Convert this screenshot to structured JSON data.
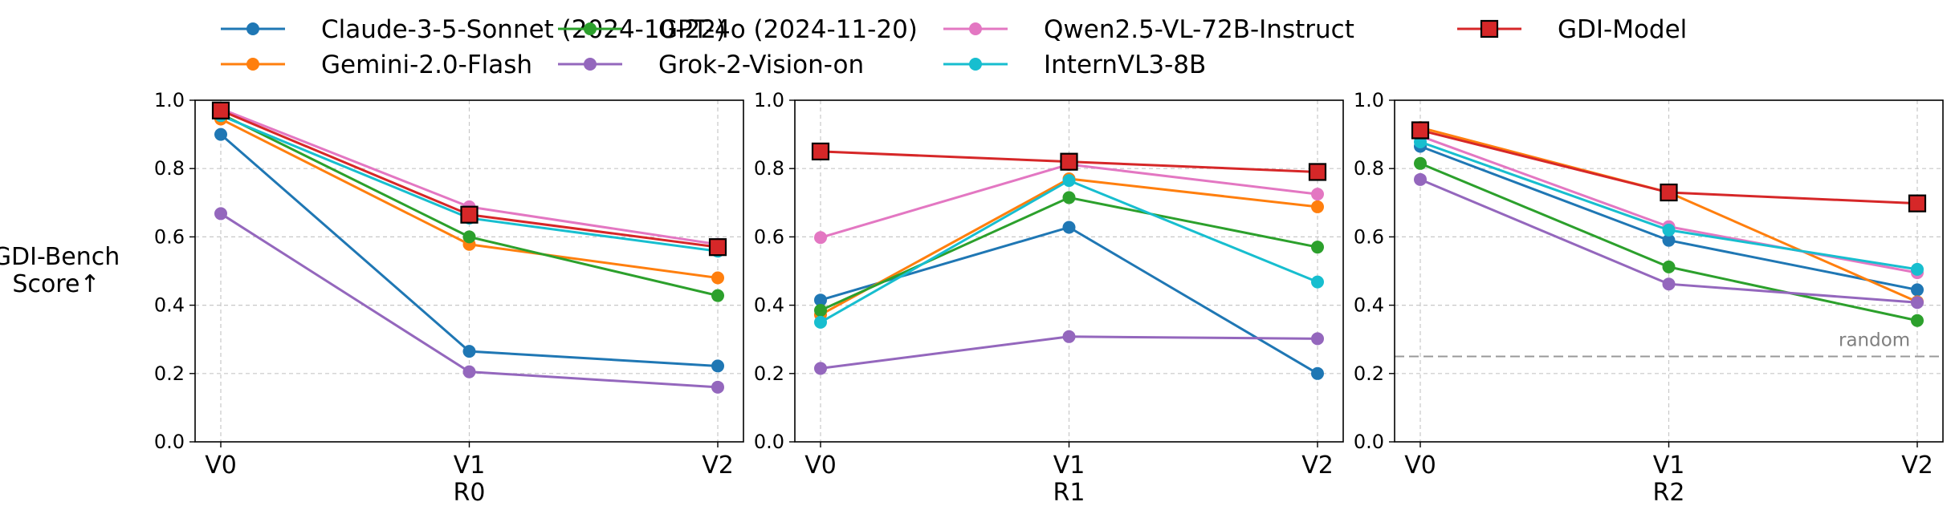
{
  "chart_data": {
    "type": "line",
    "ylabel": "GDI-Bench Score↑",
    "ylabel_lines": [
      "GDI-Bench",
      "Score↑"
    ],
    "ylim": [
      0,
      1.0
    ],
    "yticks": [
      "0.0",
      "0.2",
      "0.4",
      "0.6",
      "0.8",
      "1.0"
    ],
    "categories": [
      "V0",
      "V1",
      "V2"
    ],
    "grid": true,
    "legend": "top-center",
    "series": [
      {
        "name": "Claude-3-5-Sonnet (2024-10-22)",
        "color": "#1f77b4",
        "marker": "circle"
      },
      {
        "name": "Gemini-2.0-Flash",
        "color": "#ff7f0e",
        "marker": "circle"
      },
      {
        "name": "GPT-4o (2024-11-20)",
        "color": "#2ca02c",
        "marker": "circle"
      },
      {
        "name": "Grok-2-Vision-on",
        "color": "#9467bd",
        "marker": "circle"
      },
      {
        "name": "Qwen2.5-VL-72B-Instruct",
        "color": "#e377c2",
        "marker": "circle"
      },
      {
        "name": "InternVL3-8B",
        "color": "#17becf",
        "marker": "circle"
      },
      {
        "name": "GDI-Model",
        "color": "#d62728",
        "marker": "square"
      }
    ],
    "panels": [
      {
        "xlabel": "R0",
        "values": [
          [
            0.9,
            0.265,
            0.222
          ],
          [
            0.945,
            0.578,
            0.48
          ],
          [
            0.96,
            0.6,
            0.428
          ],
          [
            0.668,
            0.205,
            0.16
          ],
          [
            0.975,
            0.688,
            0.578
          ],
          [
            0.955,
            0.655,
            0.558
          ],
          [
            0.97,
            0.665,
            0.57
          ]
        ]
      },
      {
        "xlabel": "R1",
        "values": [
          [
            0.415,
            0.628,
            0.2
          ],
          [
            0.372,
            0.77,
            0.688
          ],
          [
            0.385,
            0.715,
            0.57
          ],
          [
            0.215,
            0.308,
            0.302
          ],
          [
            0.598,
            0.812,
            0.725
          ],
          [
            0.35,
            0.765,
            0.468
          ],
          [
            0.85,
            0.82,
            0.79
          ]
        ]
      },
      {
        "xlabel": "R2",
        "values": [
          [
            0.865,
            0.59,
            0.445
          ],
          [
            0.92,
            0.73,
            0.41
          ],
          [
            0.815,
            0.512,
            0.355
          ],
          [
            0.768,
            0.462,
            0.408
          ],
          [
            0.895,
            0.63,
            0.495
          ],
          [
            0.878,
            0.62,
            0.505
          ],
          [
            0.912,
            0.73,
            0.698
          ]
        ],
        "reference_line": {
          "value": 0.25,
          "label": "random",
          "color": "#999999"
        }
      }
    ]
  }
}
